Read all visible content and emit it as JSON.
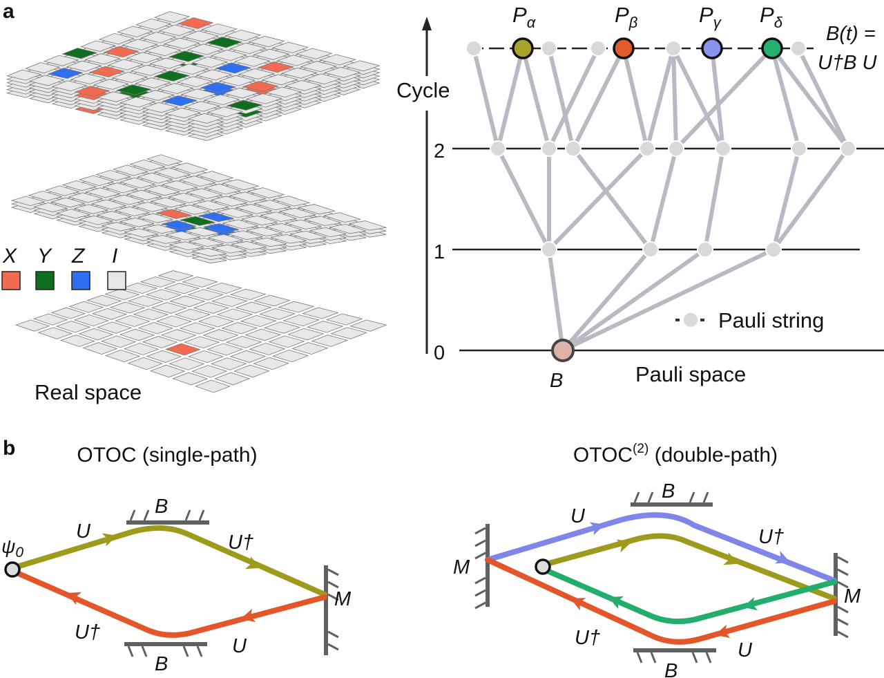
{
  "panel_a": {
    "label": "a",
    "real_space_label": "Real space",
    "legend": [
      {
        "symbol": "X",
        "color": "#f26a50"
      },
      {
        "symbol": "Y",
        "color": "#0f6f1e"
      },
      {
        "symbol": "Z",
        "color": "#2e6ff2"
      },
      {
        "symbol": "I",
        "color": "#e6e6e6"
      }
    ],
    "layers": [
      {
        "sheets": 6,
        "cells": [
          [
            0,
            1,
            "X"
          ],
          [
            1,
            3,
            "Y"
          ],
          [
            2,
            6,
            "X"
          ],
          [
            3,
            3,
            "Y"
          ],
          [
            3,
            5,
            "Z"
          ],
          [
            4,
            1,
            "X"
          ],
          [
            4,
            7,
            "X"
          ],
          [
            5,
            0,
            "Y"
          ],
          [
            5,
            4,
            "Y"
          ],
          [
            5,
            6,
            "Z"
          ],
          [
            6,
            2,
            "X"
          ],
          [
            6,
            8,
            "Y"
          ],
          [
            7,
            1,
            "Z"
          ],
          [
            7,
            4,
            "Y"
          ],
          [
            7,
            6,
            "Z"
          ],
          [
            8,
            3,
            "X"
          ]
        ]
      },
      {
        "sheets": 3,
        "cells": [
          [
            4,
            5,
            "Z"
          ],
          [
            5,
            5,
            "Y"
          ],
          [
            5,
            6,
            "Z"
          ],
          [
            5,
            4,
            "X"
          ],
          [
            6,
            5,
            "Z"
          ]
        ]
      },
      {
        "sheets": 1,
        "cells": [
          [
            6,
            5,
            "X"
          ]
        ]
      }
    ],
    "pauli_space": {
      "axis_label": "Cycle",
      "ticks": [
        "0",
        "1",
        "2"
      ],
      "top_labels": [
        "P",
        "P",
        "P",
        "P"
      ],
      "top_subscripts": [
        "α",
        "β",
        "γ",
        "δ"
      ],
      "highlight_colors": [
        "#a8a32a",
        "#e05a2a",
        "#8a92ef",
        "#22b26e"
      ],
      "source_label": "B",
      "source_color": "#dcb3a6",
      "formula_line1": "B(t) =",
      "formula_line2": "U†B U",
      "legend_label": "Pauli string",
      "space_label": "Pauli space",
      "node_color": "#d9d9d9",
      "edge_color": "#b9b9c4"
    }
  },
  "panel_b": {
    "label": "b",
    "single": {
      "title": "OTOC (single-path)",
      "psi": "ψ",
      "psi_sub": "0",
      "u_forward": "U",
      "u_dagger_forward": "U†",
      "u_dagger_back": "U†",
      "u_back": "U",
      "mirror_top": "B",
      "mirror_bottom": "B",
      "mirror_right": "M"
    },
    "double": {
      "title_main": "OTOC",
      "title_sup": "(2)",
      "title_rest": " (double-path)",
      "u_forward": "U",
      "u_dagger_forward": "U†",
      "u_dagger_back": "U†",
      "u_back": "U",
      "mirror_top": "B",
      "mirror_bottom": "B",
      "mirror_left": "M",
      "mirror_right": "M"
    },
    "colors": {
      "forward": "#9e9a1c",
      "backward": "#e2562a",
      "second_forward": "#7f86ea",
      "second_backward": "#22ae6a",
      "mirror": "#5c6262"
    }
  }
}
